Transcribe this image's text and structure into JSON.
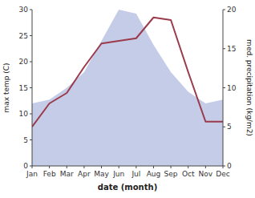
{
  "chart_data": {
    "type": "line",
    "xlabel": "date (month)",
    "ylabel": "max temp (C)",
    "y2label": "med. precipitation (kg/m2)",
    "categories": [
      "Jan",
      "Feb",
      "Mar",
      "Apr",
      "May",
      "Jun",
      "Jul",
      "Aug",
      "Sep",
      "Oct",
      "Nov",
      "Dec"
    ],
    "series": [
      {
        "type": "area",
        "color": "#c5cce8",
        "axis": "y2",
        "values": [
          8.0,
          8.5,
          10.0,
          12.0,
          16.0,
          20.0,
          19.5,
          15.5,
          12.0,
          9.5,
          8.0,
          8.5
        ]
      },
      {
        "type": "line",
        "color": "#9b3a4a",
        "values": [
          7.5,
          12.0,
          14.0,
          19.0,
          23.5,
          24.0,
          24.5,
          28.5,
          28.0,
          18.0,
          8.5,
          8.5
        ]
      }
    ],
    "ylim": [
      0,
      30
    ],
    "yticks": [
      0,
      5,
      10,
      15,
      20,
      25,
      30
    ],
    "y2lim": [
      0,
      20
    ],
    "y2ticks": [
      0,
      5,
      10,
      15,
      20
    ],
    "grid": false
  }
}
